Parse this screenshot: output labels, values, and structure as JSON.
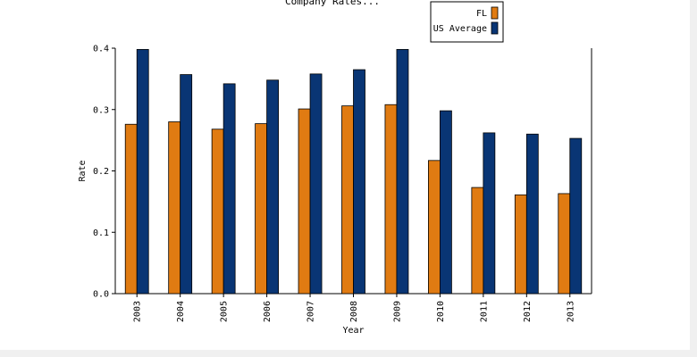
{
  "colors": {
    "fl": "#e07b12",
    "us_average": "#093574",
    "axis": "#000000",
    "background": "#ffffff"
  },
  "chart_data": {
    "type": "bar",
    "title": "Company Rates...",
    "xlabel": "Year",
    "ylabel": "Rate",
    "ylim": [
      0,
      0.4
    ],
    "yticks": [
      "0.0",
      "0.1",
      "0.2",
      "0.3",
      "0.4"
    ],
    "categories": [
      "2003",
      "2004",
      "2005",
      "2006",
      "2007",
      "2008",
      "2009",
      "2010",
      "2011",
      "2012",
      "2013"
    ],
    "legend_position": "top-right",
    "grid": false,
    "series": [
      {
        "name": "FL",
        "color": "#e07b12",
        "values": [
          0.276,
          0.28,
          0.268,
          0.277,
          0.301,
          0.306,
          0.308,
          0.217,
          0.173,
          0.161,
          0.163
        ]
      },
      {
        "name": "US Average",
        "color": "#093574",
        "values": [
          0.398,
          0.357,
          0.342,
          0.348,
          0.358,
          0.365,
          0.398,
          0.298,
          0.262,
          0.26,
          0.253
        ]
      }
    ]
  }
}
